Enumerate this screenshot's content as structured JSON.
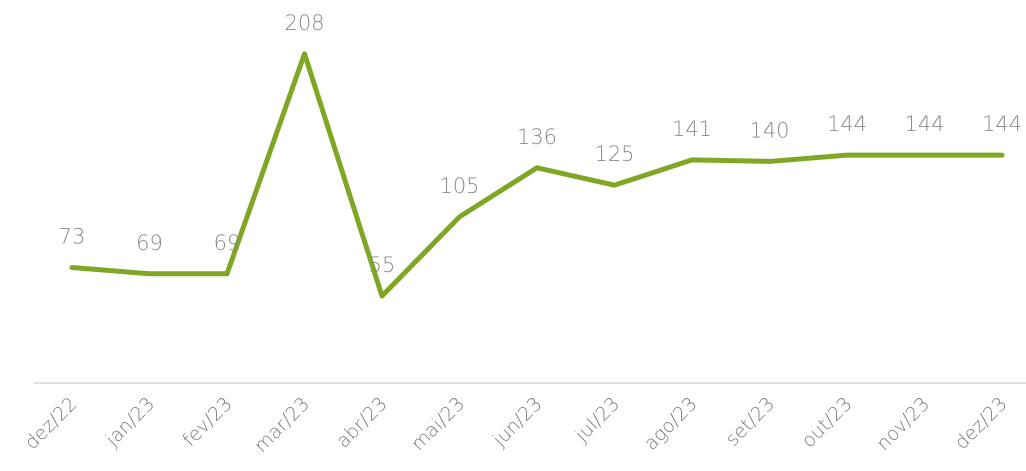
{
  "chart_data": {
    "type": "line",
    "categories": [
      "dez/22",
      "jan/23",
      "fev/23",
      "mar/23",
      "abr/23",
      "mai/23",
      "jun/23",
      "jul/23",
      "ago/23",
      "set/23",
      "out/23",
      "nov/23",
      "dez/23"
    ],
    "values": [
      73,
      69,
      69,
      208,
      55,
      105,
      136,
      125,
      141,
      140,
      144,
      144,
      144
    ],
    "color": "#7fa624",
    "ylim": [
      0,
      242
    ]
  }
}
